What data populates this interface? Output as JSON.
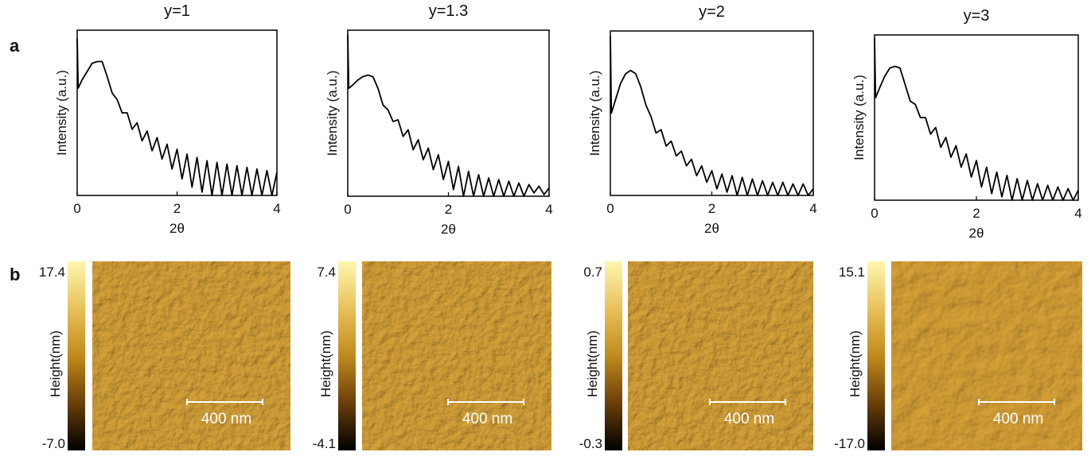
{
  "panel_labels": [
    "a",
    "b"
  ],
  "chart_data": [
    {
      "type": "line",
      "title": "y=1",
      "xlabel": "2θ",
      "ylabel": "Intensity (a.u.)",
      "color": "#000000",
      "xlim": [
        0,
        4
      ],
      "xticks": [
        0,
        2,
        4
      ],
      "ylim": [
        0,
        100
      ],
      "x": [
        0,
        0.02,
        0.1,
        0.2,
        0.3,
        0.4,
        0.5,
        0.6,
        0.7,
        0.8,
        0.9,
        1.0,
        1.1,
        1.2,
        1.3,
        1.4,
        1.5,
        1.6,
        1.7,
        1.8,
        1.9,
        2.0,
        2.1,
        2.2,
        2.3,
        2.4,
        2.5,
        2.6,
        2.7,
        2.8,
        2.9,
        3.0,
        3.1,
        3.2,
        3.3,
        3.4,
        3.5,
        3.6,
        3.7,
        3.8,
        3.9,
        4.0
      ],
      "values": [
        95,
        65,
        70,
        75,
        80,
        81,
        81,
        72,
        62,
        58,
        50,
        50,
        40,
        44,
        33,
        39,
        27,
        35,
        22,
        31,
        16,
        28,
        10,
        25,
        5,
        23,
        2,
        21,
        0,
        20,
        0,
        19,
        0,
        18,
        0,
        17,
        0,
        16,
        0,
        15,
        0,
        14
      ]
    },
    {
      "type": "line",
      "title": "y=1.3",
      "xlabel": "2θ",
      "ylabel": "Intensity (a.u.)",
      "color": "#000000",
      "xlim": [
        0,
        4
      ],
      "xticks": [
        0,
        2,
        4
      ],
      "ylim": [
        0,
        100
      ],
      "x": [
        0,
        0.02,
        0.1,
        0.2,
        0.3,
        0.4,
        0.5,
        0.6,
        0.7,
        0.8,
        0.9,
        1.0,
        1.1,
        1.2,
        1.3,
        1.4,
        1.5,
        1.6,
        1.7,
        1.8,
        1.9,
        2.0,
        2.1,
        2.2,
        2.3,
        2.4,
        2.5,
        2.6,
        2.7,
        2.8,
        2.9,
        3.0,
        3.1,
        3.2,
        3.3,
        3.4,
        3.5,
        3.6,
        3.7,
        3.8,
        3.9,
        4.0
      ],
      "values": [
        97,
        65,
        67,
        70,
        72,
        73,
        72,
        65,
        55,
        52,
        45,
        46,
        36,
        40,
        28,
        34,
        22,
        29,
        16,
        25,
        10,
        21,
        4,
        18,
        0,
        15,
        0,
        13,
        0,
        11,
        0,
        10,
        0,
        9,
        0,
        8,
        0,
        7,
        2,
        6,
        1,
        5
      ]
    },
    {
      "type": "line",
      "title": "y=2",
      "xlabel": "2θ",
      "ylabel": "Intensity (a.u.)",
      "color": "#000000",
      "xlim": [
        0,
        4
      ],
      "xticks": [
        0,
        2,
        4
      ],
      "ylim": [
        0,
        100
      ],
      "x": [
        0,
        0.02,
        0.1,
        0.2,
        0.3,
        0.4,
        0.5,
        0.6,
        0.7,
        0.8,
        0.9,
        1.0,
        1.1,
        1.2,
        1.3,
        1.4,
        1.5,
        1.6,
        1.7,
        1.8,
        1.9,
        2.0,
        2.1,
        2.2,
        2.3,
        2.4,
        2.5,
        2.6,
        2.7,
        2.8,
        2.9,
        3.0,
        3.1,
        3.2,
        3.3,
        3.4,
        3.5,
        3.6,
        3.7,
        3.8,
        3.9,
        4.0
      ],
      "values": [
        97,
        50,
        58,
        68,
        74,
        76,
        74,
        66,
        55,
        48,
        38,
        40,
        30,
        33,
        24,
        27,
        18,
        22,
        12,
        18,
        8,
        15,
        4,
        13,
        2,
        12,
        0,
        11,
        0,
        10,
        0,
        9,
        0,
        8,
        0,
        8,
        0,
        7,
        0,
        7,
        0,
        4
      ]
    },
    {
      "type": "line",
      "title": "y=3",
      "xlabel": "2θ",
      "ylabel": "Intensity (a.u.)",
      "color": "#000000",
      "xlim": [
        0,
        4
      ],
      "xticks": [
        0,
        2,
        4
      ],
      "ylim": [
        0,
        100
      ],
      "x": [
        0,
        0.02,
        0.1,
        0.2,
        0.3,
        0.4,
        0.5,
        0.6,
        0.7,
        0.8,
        0.9,
        1.0,
        1.1,
        1.2,
        1.3,
        1.4,
        1.5,
        1.6,
        1.7,
        1.8,
        1.9,
        2.0,
        2.1,
        2.2,
        2.3,
        2.4,
        2.5,
        2.6,
        2.7,
        2.8,
        2.9,
        3.0,
        3.1,
        3.2,
        3.3,
        3.4,
        3.5,
        3.6,
        3.7,
        3.8,
        3.9,
        4.0
      ],
      "values": [
        98,
        62,
        68,
        75,
        80,
        81,
        80,
        70,
        60,
        58,
        50,
        50,
        40,
        44,
        32,
        38,
        26,
        33,
        20,
        28,
        14,
        24,
        8,
        20,
        4,
        17,
        2,
        15,
        0,
        13,
        0,
        12,
        0,
        10,
        0,
        9,
        0,
        8,
        0,
        7,
        0,
        6
      ]
    }
  ],
  "afm": [
    {
      "max": "17.4",
      "min": "-7.0",
      "colorbar_label": "Height(nm)",
      "scale_bar": "400 nm"
    },
    {
      "max": "7.4",
      "min": "-4.1",
      "colorbar_label": "Height(nm)",
      "scale_bar": "400 nm"
    },
    {
      "max": "0.7",
      "min": "-0.3",
      "colorbar_label": "Height(nm)",
      "scale_bar": "400 nm"
    },
    {
      "max": "15.1",
      "min": "-17.0",
      "colorbar_label": "Height(nm)",
      "scale_bar": "400 nm"
    }
  ]
}
